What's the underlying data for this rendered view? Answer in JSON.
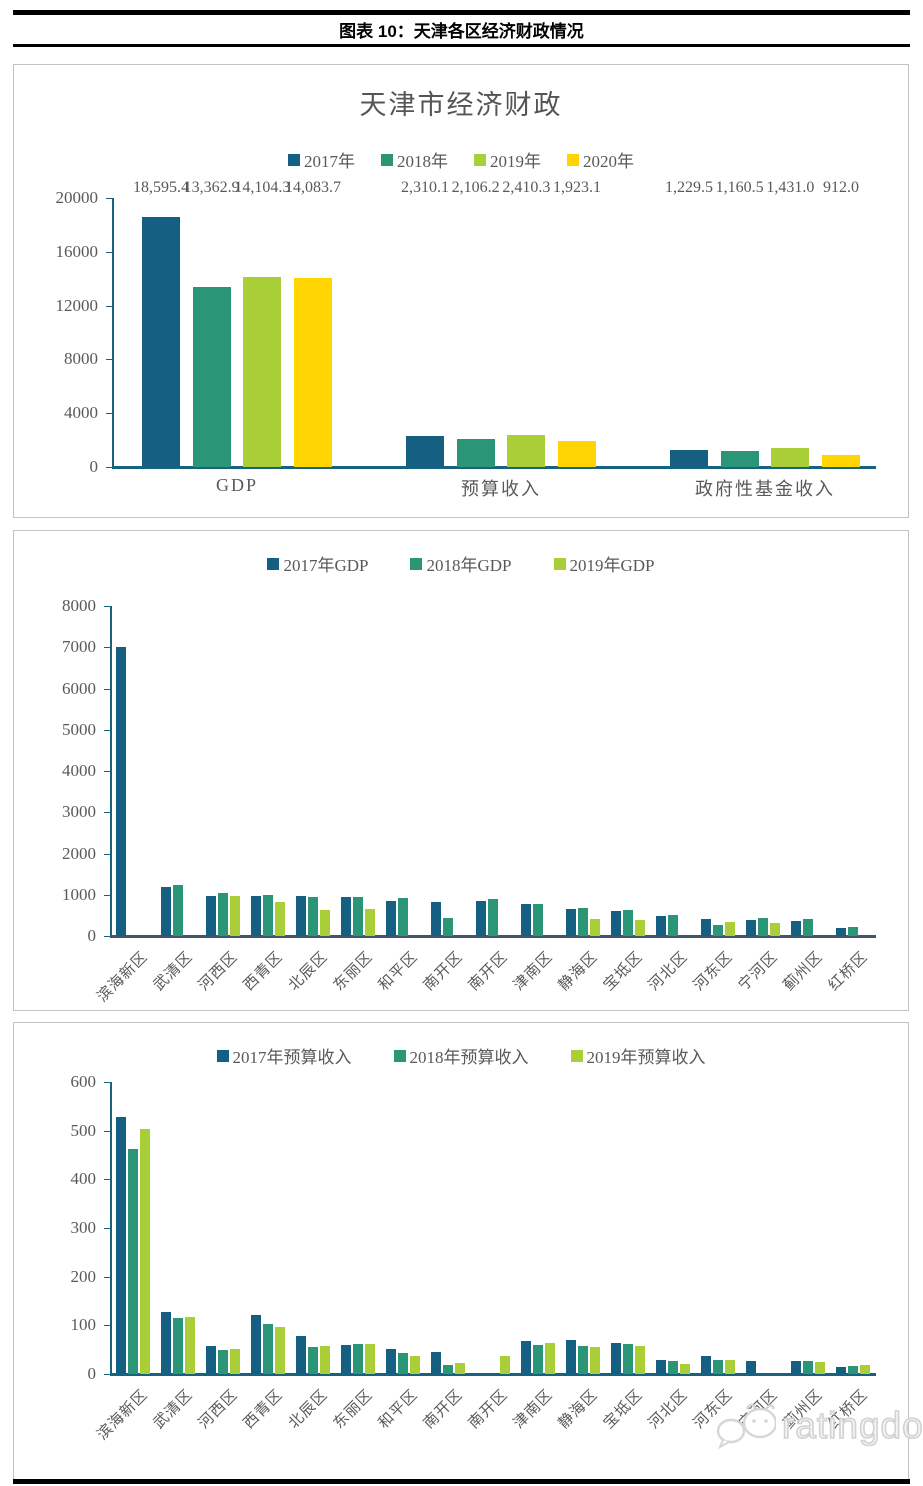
{
  "header": {
    "title": "图表 10：天津各区经济财政情况"
  },
  "watermark": {
    "text": "ratingdog",
    "icon": "wechat-dog-icon"
  },
  "colors": {
    "y2017": "#156082",
    "y2018": "#2B9577",
    "y2019": "#A9CE38",
    "y2020": "#FFD400",
    "axis": "#17637F",
    "baseline_mid": "#44546A",
    "text_gray": "#595959"
  },
  "chart_data": [
    {
      "type": "bar",
      "title": "天津市经济财政",
      "legend_position": "top",
      "grid": false,
      "categories": [
        "GDP",
        "预算收入",
        "政府性基金收入"
      ],
      "ylim": [
        0,
        20000
      ],
      "yticks": [
        0,
        4000,
        8000,
        12000,
        16000,
        20000
      ],
      "series": [
        {
          "name": "2017年",
          "color_key": "y2017",
          "values": [
            18595.4,
            2310.1,
            1229.5
          ],
          "labels": [
            "18,595.4",
            "2,310.1",
            "1,229.5"
          ]
        },
        {
          "name": "2018年",
          "color_key": "y2018",
          "values": [
            13362.9,
            2106.2,
            1160.5
          ],
          "labels": [
            "13,362.9",
            "2,106.2",
            "1,160.5"
          ]
        },
        {
          "name": "2019年",
          "color_key": "y2019",
          "values": [
            14104.3,
            2410.3,
            1431.0
          ],
          "labels": [
            "14,104.3",
            "2,410.3",
            "1,431.0"
          ]
        },
        {
          "name": "2020年",
          "color_key": "y2020",
          "values": [
            14083.7,
            1923.1,
            912.0
          ],
          "labels": [
            "14,083.7",
            "1,923.1",
            "912.0"
          ]
        }
      ]
    },
    {
      "type": "bar",
      "title": "",
      "legend_position": "top",
      "grid": false,
      "categories": [
        "滨海新区",
        "武清区",
        "河西区",
        "西青区",
        "北辰区",
        "东丽区",
        "和平区",
        "南开区",
        "南开区",
        "津南区",
        "静海区",
        "宝坻区",
        "河北区",
        "河东区",
        "宁河区",
        "蓟州区",
        "红桥区"
      ],
      "ylim": [
        0,
        8000
      ],
      "yticks": [
        0,
        1000,
        2000,
        3000,
        4000,
        5000,
        6000,
        7000,
        8000
      ],
      "series": [
        {
          "name": "2017年GDP",
          "color_key": "y2017",
          "values": [
            7000,
            1200,
            980,
            960,
            960,
            950,
            860,
            820,
            845,
            780,
            660,
            615,
            480,
            420,
            390,
            375,
            200
          ]
        },
        {
          "name": "2018年GDP",
          "color_key": "y2018",
          "values": [
            null,
            1225,
            1035,
            985,
            945,
            955,
            925,
            445,
            900,
            765,
            680,
            640,
            500,
            255,
            445,
            405,
            225
          ]
        },
        {
          "name": "2019年GDP",
          "color_key": "y2019",
          "values": [
            null,
            null,
            975,
            825,
            620,
            655,
            null,
            null,
            null,
            null,
            420,
            395,
            null,
            330,
            310,
            null,
            null
          ]
        }
      ]
    },
    {
      "type": "bar",
      "title": "",
      "legend_position": "top",
      "grid": false,
      "categories": [
        "滨海新区",
        "武清区",
        "河西区",
        "西青区",
        "北辰区",
        "东丽区",
        "和平区",
        "南开区",
        "南开区",
        "津南区",
        "静海区",
        "宝坻区",
        "河北区",
        "河东区",
        "宁河区",
        "蓟州区",
        "红桥区"
      ],
      "ylim": [
        0,
        600
      ],
      "yticks": [
        0,
        100,
        200,
        300,
        400,
        500,
        600
      ],
      "series": [
        {
          "name": "2017年预算收入",
          "color_key": "y2017",
          "values": [
            528,
            127,
            58,
            121,
            79,
            60,
            52,
            46,
            null,
            67,
            70,
            64,
            29,
            37,
            27,
            26,
            15
          ]
        },
        {
          "name": "2018年预算收入",
          "color_key": "y2018",
          "values": [
            463,
            116,
            49,
            103,
            56,
            61,
            44,
            19,
            null,
            60,
            58,
            61,
            27,
            28,
            null,
            27,
            16
          ]
        },
        {
          "name": "2019年预算收入",
          "color_key": "y2019",
          "values": [
            503,
            118,
            52,
            96,
            58,
            62,
            37,
            23,
            38,
            64,
            55,
            57,
            21,
            28,
            null,
            24,
            18
          ]
        }
      ]
    }
  ]
}
